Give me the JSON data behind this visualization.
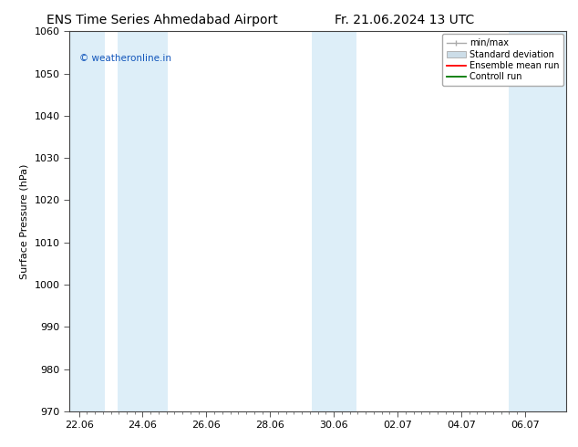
{
  "title_left": "ENS Time Series Ahmedabad Airport",
  "title_right": "Fr. 21.06.2024 13 UTC",
  "ylabel": "Surface Pressure (hPa)",
  "ylim": [
    970,
    1060
  ],
  "yticks": [
    970,
    980,
    990,
    1000,
    1010,
    1020,
    1030,
    1040,
    1050,
    1060
  ],
  "xtick_labels": [
    "22.06",
    "24.06",
    "26.06",
    "28.06",
    "30.06",
    "02.07",
    "04.07",
    "06.07"
  ],
  "xtick_positions": [
    0,
    2,
    4,
    6,
    8,
    10,
    12,
    14
  ],
  "xmin": -0.3,
  "xmax": 15.3,
  "shaded_bands": [
    {
      "xmin": -0.3,
      "xmax": 0.8
    },
    {
      "xmin": 1.2,
      "xmax": 2.8
    },
    {
      "xmin": 7.3,
      "xmax": 8.7
    },
    {
      "xmin": 13.5,
      "xmax": 15.3
    }
  ],
  "band_color": "#ddeef8",
  "watermark_text": "© weatheronline.in",
  "watermark_color": "#1155bb",
  "legend_labels": [
    "min/max",
    "Standard deviation",
    "Ensemble mean run",
    "Controll run"
  ],
  "legend_colors": [
    "#aaaaaa",
    "#ccdde8",
    "#ff0000",
    "#007700"
  ],
  "bg_color": "#ffffff",
  "axes_bg_color": "#ffffff",
  "font_color": "#000000",
  "title_fontsize": 10,
  "label_fontsize": 8,
  "tick_fontsize": 8
}
